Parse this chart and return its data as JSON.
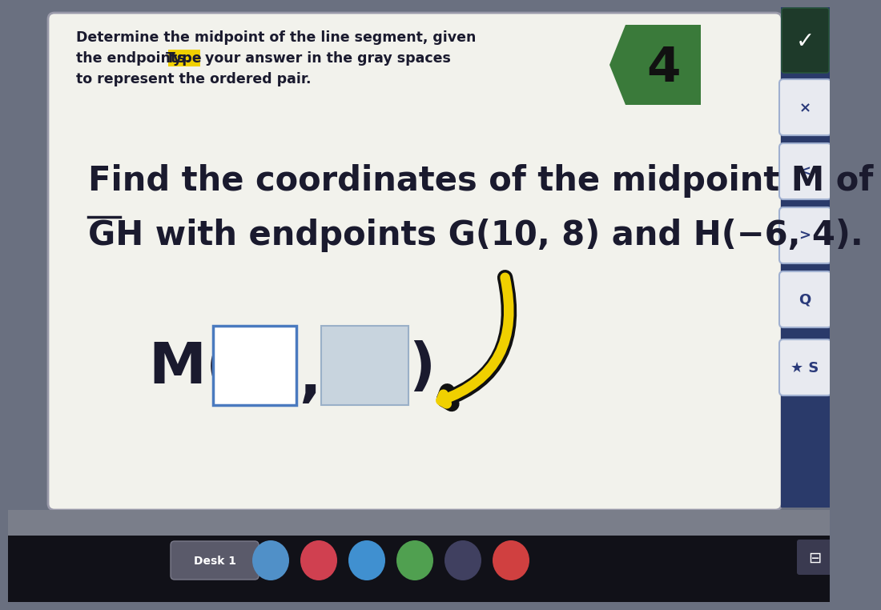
{
  "bg_outer": "#6a7080",
  "bg_card": "#f2f2ec",
  "card_border": "#9a9aaa",
  "title_color": "#1a1a2e",
  "type_highlight": "#f0d000",
  "badge_color": "#3a7a3a",
  "badge_number": "4",
  "badge_text_color": "#111111",
  "main_text_color": "#1a1a2e",
  "box1_border": "#4a7abf",
  "box1_fill": "#ffffff",
  "box2_border": "#9ab0c8",
  "box2_fill": "#c8d4de",
  "sidebar_bg": "#2a3a6a",
  "sidebar_button_bg": "#e8eaf0",
  "sidebar_button_border": "#a0b0d0",
  "taskbar_bg": "#111118",
  "taskbar_label": "Desk 1",
  "arrow_color_outer": "#111111",
  "arrow_color_inner": "#f0d000",
  "title_line1": "Determine the midpoint of the line segment, given",
  "title_line2a": "the endpoints. ",
  "title_line2b": "Type",
  "title_line2c": " your answer in the gray spaces",
  "title_line3": "to represent the ordered pair.",
  "main_line1": "Find the coordinates of the midpoint M of",
  "main_line2": "GH with endpoints G(10, 8) and H(−6, 4)."
}
